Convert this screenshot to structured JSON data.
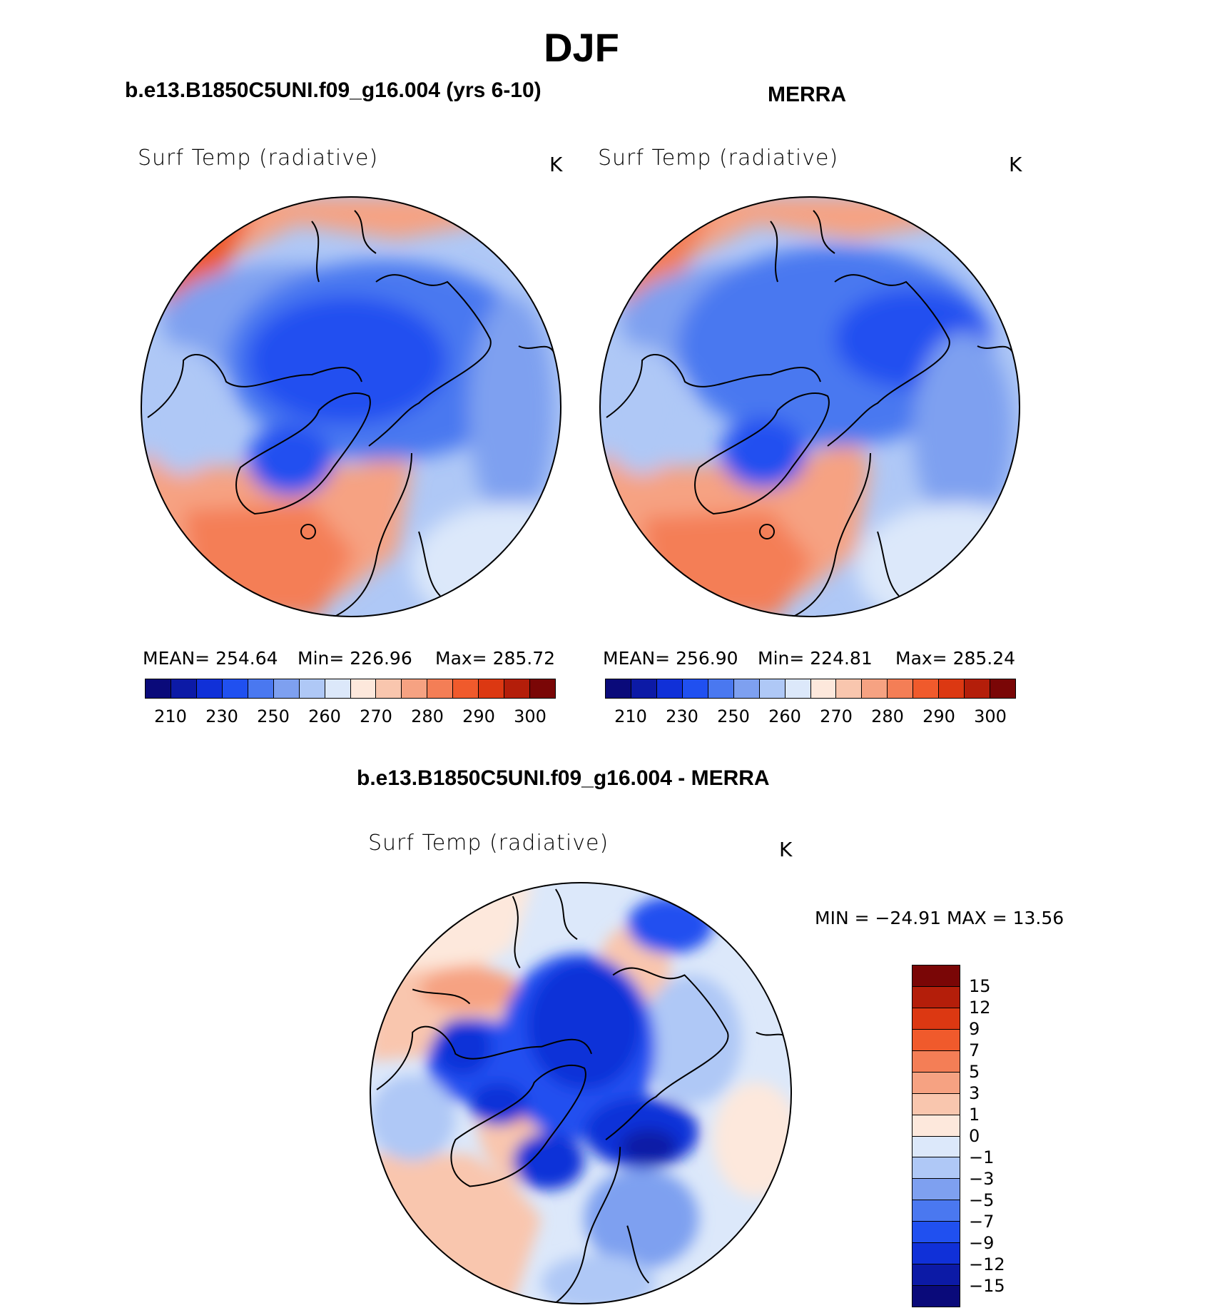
{
  "header": {
    "title": "DJF",
    "left_title": "b.e13.B1850C5UNI.f09_g16.004 (yrs 6-10)",
    "right_title": "MERRA",
    "diff_title": "b.e13.B1850C5UNI.f09_g16.004 - MERRA"
  },
  "panels": {
    "model": {
      "variable": "Surf Temp (radiative)",
      "unit": "K",
      "mean": "MEAN= 254.64",
      "min": "Min= 226.96",
      "max": "Max= 285.72"
    },
    "obs": {
      "variable": "Surf Temp (radiative)",
      "unit": "K",
      "mean": "MEAN= 256.90",
      "min": "Min= 224.81",
      "max": "Max= 285.24"
    },
    "diff": {
      "variable": "Surf Temp (radiative)",
      "unit": "K",
      "minmax": "MIN = −24.91 MAX =   13.56"
    }
  },
  "colorbars": {
    "abs": {
      "colors": [
        "#0a0a7a",
        "#0c1aa6",
        "#1030d8",
        "#2050f0",
        "#4a78f0",
        "#7ea0f0",
        "#afc8f6",
        "#dce8fa",
        "#fde8dc",
        "#f9c6ae",
        "#f6a282",
        "#f47e56",
        "#f05a2c",
        "#dc3812",
        "#b41e0a",
        "#7a0606"
      ],
      "ticks": [
        "210",
        "230",
        "250",
        "260",
        "270",
        "280",
        "290",
        "300"
      ]
    },
    "diff": {
      "colors": [
        "#0a0a7a",
        "#0c1aa6",
        "#1030d8",
        "#2050f0",
        "#4a78f0",
        "#7ea0f0",
        "#afc8f6",
        "#dce8fa",
        "#fde8dc",
        "#f9c6ae",
        "#f6a282",
        "#f47e56",
        "#f05a2c",
        "#dc3812",
        "#b41e0a",
        "#7a0606"
      ],
      "ticks": [
        "15",
        "12",
        "9",
        "7",
        "5",
        "3",
        "1",
        "0",
        "−1",
        "−3",
        "−5",
        "−7",
        "−9",
        "−12",
        "−15"
      ]
    }
  }
}
